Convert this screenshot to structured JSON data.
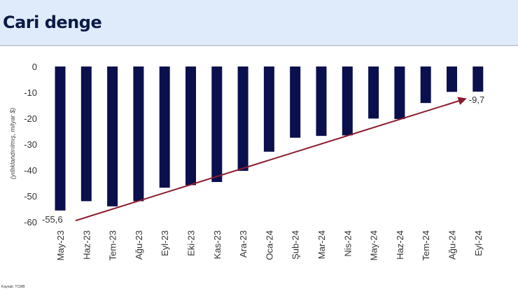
{
  "header": {
    "title": "Cari denge"
  },
  "source": "Kaynak: TCMB",
  "chart_data": {
    "type": "bar",
    "title": "",
    "ylabel": "(yıllıklandırılmış, milyar $)",
    "xlabel": "",
    "ylim": [
      -60,
      0
    ],
    "yticks": [
      0,
      -10,
      -20,
      -30,
      -40,
      -50,
      -60
    ],
    "categories": [
      "May-23",
      "Haz-23",
      "Tem-23",
      "Ağu-23",
      "Eyl-23",
      "Eki-23",
      "Kas-23",
      "Ara-23",
      "Oca-24",
      "Şub-24",
      "Mar-24",
      "Nis-24",
      "May-24",
      "Haz-24",
      "Tem-24",
      "Ağu-24",
      "Eyl-24"
    ],
    "values": [
      -55.6,
      -52.0,
      -54.0,
      -52.0,
      -46.8,
      -45.8,
      -44.6,
      -40.3,
      -32.9,
      -27.5,
      -26.8,
      -26.6,
      -20.1,
      -20.3,
      -14.1,
      -9.8,
      -9.7
    ],
    "bar_color": "#0a0f4d",
    "annotations": [
      {
        "text": "-55,6",
        "category": "May-23",
        "value": -55.6
      },
      {
        "text": "-9,7",
        "category": "Eyl-24",
        "value": -9.7
      }
    ],
    "trend_arrow": {
      "from": {
        "category": "May-23",
        "value": -59.5
      },
      "to": {
        "category": "Eyl-24",
        "value": -12.5
      },
      "color": "#8b1a2b"
    },
    "grid": false
  }
}
